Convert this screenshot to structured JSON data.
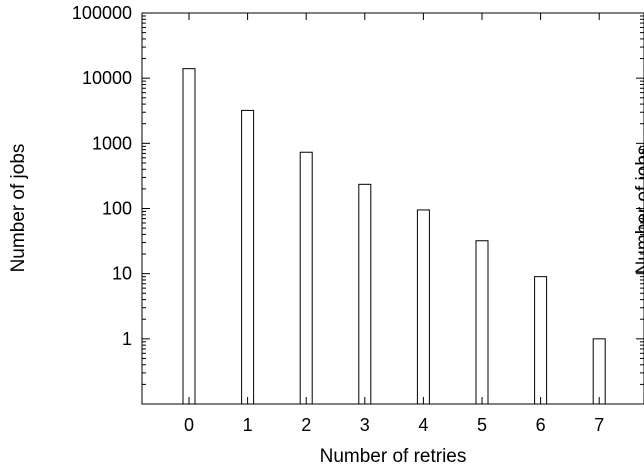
{
  "chart_data": {
    "type": "bar",
    "categories": [
      "0",
      "1",
      "2",
      "3",
      "4",
      "5",
      "6",
      "7"
    ],
    "values": [
      14000,
      3200,
      730,
      235,
      95,
      32,
      9,
      1
    ],
    "xlabel": "Number of retries",
    "ylabel": "Number of jobs",
    "yscale": "log",
    "ylim": [
      0.1,
      100000
    ],
    "yticks": [
      "1",
      "10",
      "100",
      "1000",
      "10000",
      "100000"
    ],
    "grid": false,
    "legend": "none",
    "clipped_right_panel": {
      "ylabel": "Number of jobs"
    }
  }
}
